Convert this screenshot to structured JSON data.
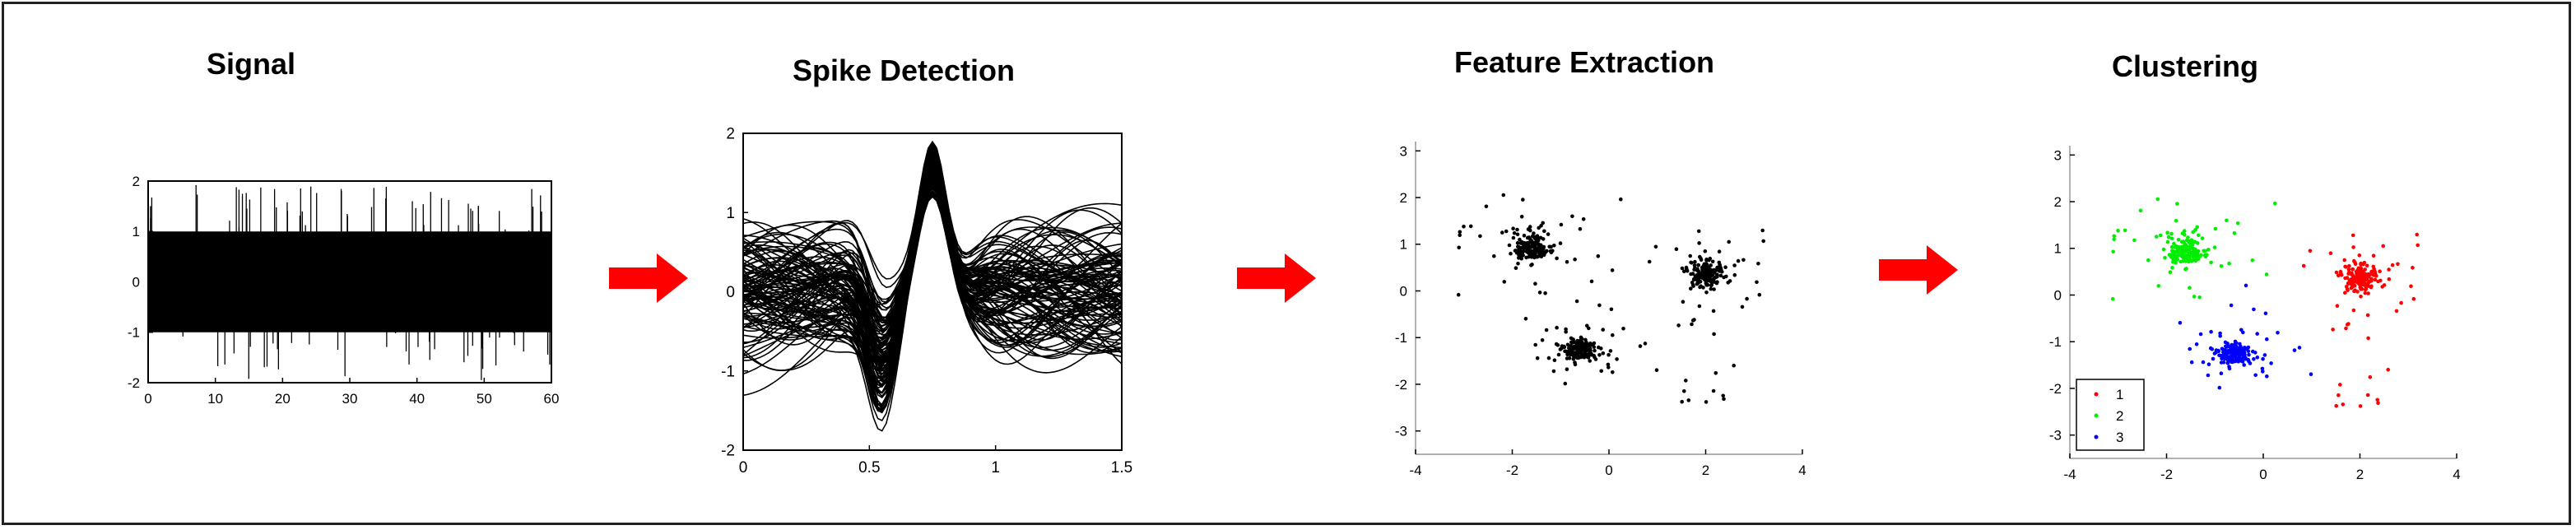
{
  "stages": [
    {
      "title": "Signal"
    },
    {
      "title": "Spike Detection"
    },
    {
      "title": "Feature Extraction"
    },
    {
      "title": "Clustering"
    }
  ],
  "colors": {
    "arrow": "#ff0000",
    "ink": "#000000",
    "cluster_1": "#ff0000",
    "cluster_2": "#00ee00",
    "cluster_3": "#0000ff"
  },
  "chart_data": [
    {
      "type": "line",
      "name": "signal",
      "xlim": [
        0,
        60
      ],
      "ylim": [
        -2,
        2
      ],
      "x_ticks": [
        "0",
        "10",
        "20",
        "30",
        "40",
        "50",
        "60"
      ],
      "y_ticks": [
        "2",
        "1",
        "0",
        "-1",
        "-2"
      ],
      "band": [
        -1,
        1
      ],
      "grid": false
    },
    {
      "type": "line",
      "name": "spike-waveforms",
      "xlim": [
        0,
        1.5
      ],
      "ylim": [
        -2,
        2
      ],
      "x_ticks": [
        "0",
        "0.5",
        "1",
        "1.5"
      ],
      "y_ticks": [
        "2",
        "1",
        "0",
        "-1",
        "-2"
      ],
      "peak_x": 0.75,
      "grid": false
    },
    {
      "type": "scatter",
      "name": "features",
      "xlim": [
        -4,
        4
      ],
      "ylim": [
        -3.5,
        3.2
      ],
      "x_ticks": [
        "-4",
        "-2",
        "0",
        "2",
        "4"
      ],
      "y_ticks": [
        "3",
        "2",
        "1",
        "0",
        "-1",
        "-2",
        "-3"
      ],
      "clusters": [
        {
          "center": [
            -1.6,
            0.9
          ],
          "sd": 0.18
        },
        {
          "center": [
            2.0,
            0.35
          ],
          "sd": 0.2
        },
        {
          "center": [
            -0.6,
            -1.25
          ],
          "sd": 0.22
        }
      ],
      "grid": false
    },
    {
      "type": "scatter",
      "name": "clusters",
      "xlim": [
        -4,
        4
      ],
      "ylim": [
        -3.5,
        3.2
      ],
      "x_ticks": [
        "-4",
        "-2",
        "0",
        "2",
        "4"
      ],
      "y_ticks": [
        "3",
        "2",
        "1",
        "0",
        "-1",
        "-2",
        "-3"
      ],
      "series": [
        {
          "name": "1",
          "color": "#ff0000",
          "center": [
            2.0,
            0.35
          ]
        },
        {
          "name": "2",
          "color": "#00ee00",
          "center": [
            -1.6,
            0.9
          ]
        },
        {
          "name": "3",
          "color": "#0000ff",
          "center": [
            -0.6,
            -1.25
          ]
        }
      ],
      "legend": "bottom-left",
      "grid": false
    }
  ]
}
